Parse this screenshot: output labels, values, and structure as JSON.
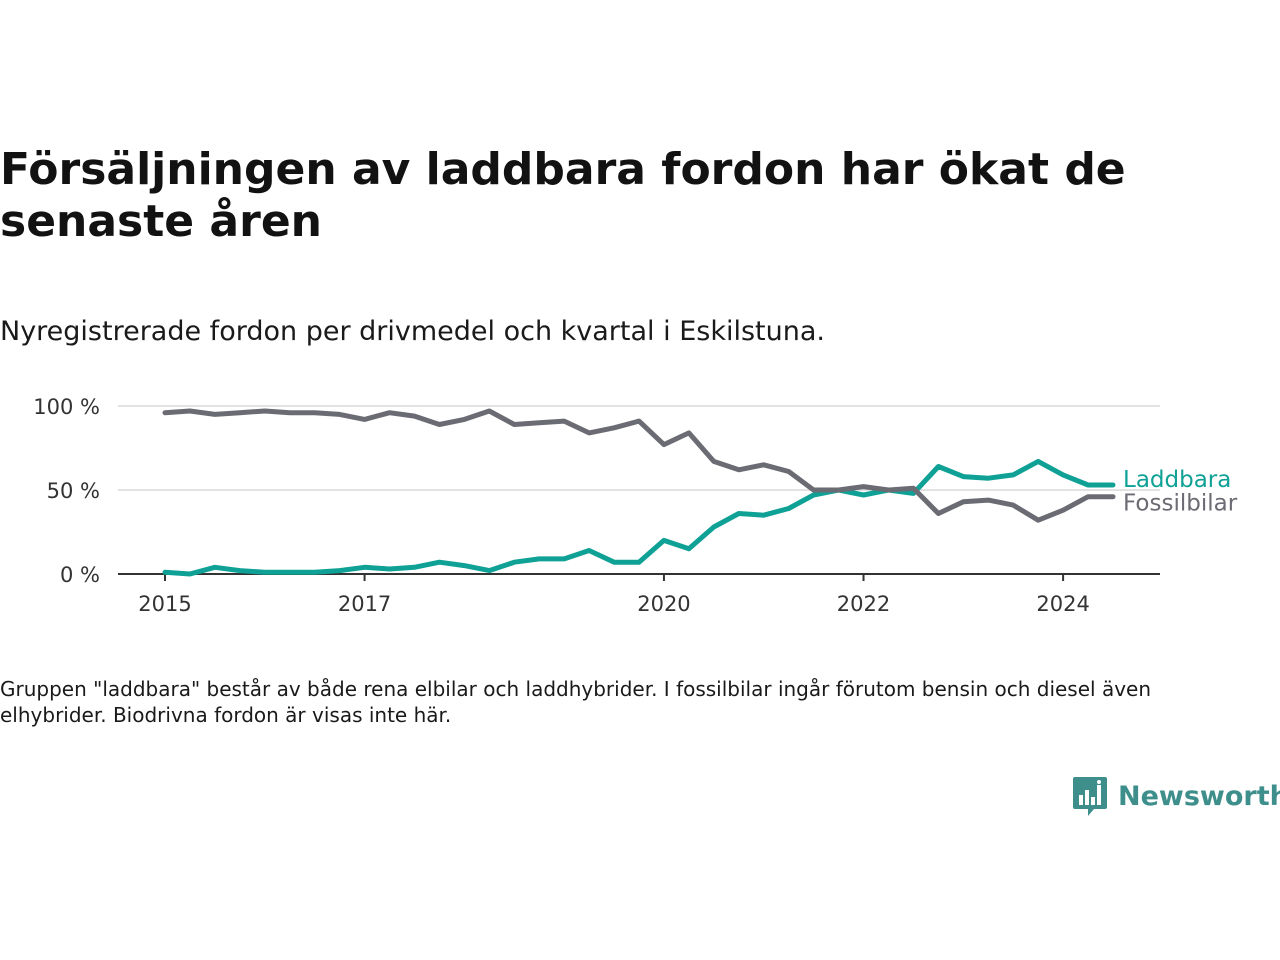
{
  "header": {
    "title": "Försäljningen av laddbara fordon har ökat de senaste åren",
    "subtitle": "Nyregistrerade fordon per drivmedel och kvartal i Eskilstuna."
  },
  "footer": {
    "note": "Gruppen \"laddbara\" består av både rena elbilar och laddhybrider. I fossilbilar ingår förutom bensin och diesel även elhybrider. Biodrivna fordon är visas inte här.",
    "brand": "Newsworthy",
    "brand_color": "#3e8f8c"
  },
  "chart_data": {
    "type": "line",
    "x": [
      2015.0,
      2015.25,
      2015.5,
      2015.75,
      2016.0,
      2016.25,
      2016.5,
      2016.75,
      2017.0,
      2017.25,
      2017.5,
      2017.75,
      2018.0,
      2018.25,
      2018.5,
      2018.75,
      2019.0,
      2019.25,
      2019.5,
      2019.75,
      2020.0,
      2020.25,
      2020.5,
      2020.75,
      2021.0,
      2021.25,
      2021.5,
      2021.75,
      2022.0,
      2022.25,
      2022.5,
      2022.75,
      2023.0,
      2023.25,
      2023.5,
      2023.75,
      2024.0,
      2024.25,
      2024.5
    ],
    "series": [
      {
        "name": "Laddbara",
        "color": "#0fa195",
        "values": [
          1,
          0,
          4,
          2,
          1,
          1,
          1,
          2,
          4,
          3,
          4,
          7,
          5,
          2,
          7,
          9,
          9,
          14,
          7,
          7,
          20,
          15,
          28,
          36,
          35,
          39,
          47,
          50,
          47,
          50,
          48,
          64,
          58,
          57,
          59,
          67,
          59,
          53,
          53
        ]
      },
      {
        "name": "Fossilbilar",
        "color": "#6b6b73",
        "values": [
          96,
          97,
          95,
          96,
          97,
          96,
          96,
          95,
          92,
          96,
          94,
          89,
          92,
          97,
          89,
          90,
          91,
          84,
          87,
          91,
          77,
          84,
          67,
          62,
          65,
          61,
          50,
          50,
          52,
          50,
          51,
          36,
          43,
          44,
          41,
          32,
          38,
          46,
          46
        ]
      }
    ],
    "yticks": [
      0,
      50,
      100
    ],
    "ytick_labels": [
      "0 %",
      "50 %",
      "100 %"
    ],
    "xticks": [
      2015,
      2017,
      2020,
      2022,
      2024
    ],
    "xtick_labels": [
      "2015",
      "2017",
      "2020",
      "2022",
      "2024"
    ],
    "xlim": [
      2015,
      2024.5
    ],
    "ylim": [
      0,
      100
    ],
    "grid": "horizontal",
    "legend": "inline-right"
  }
}
